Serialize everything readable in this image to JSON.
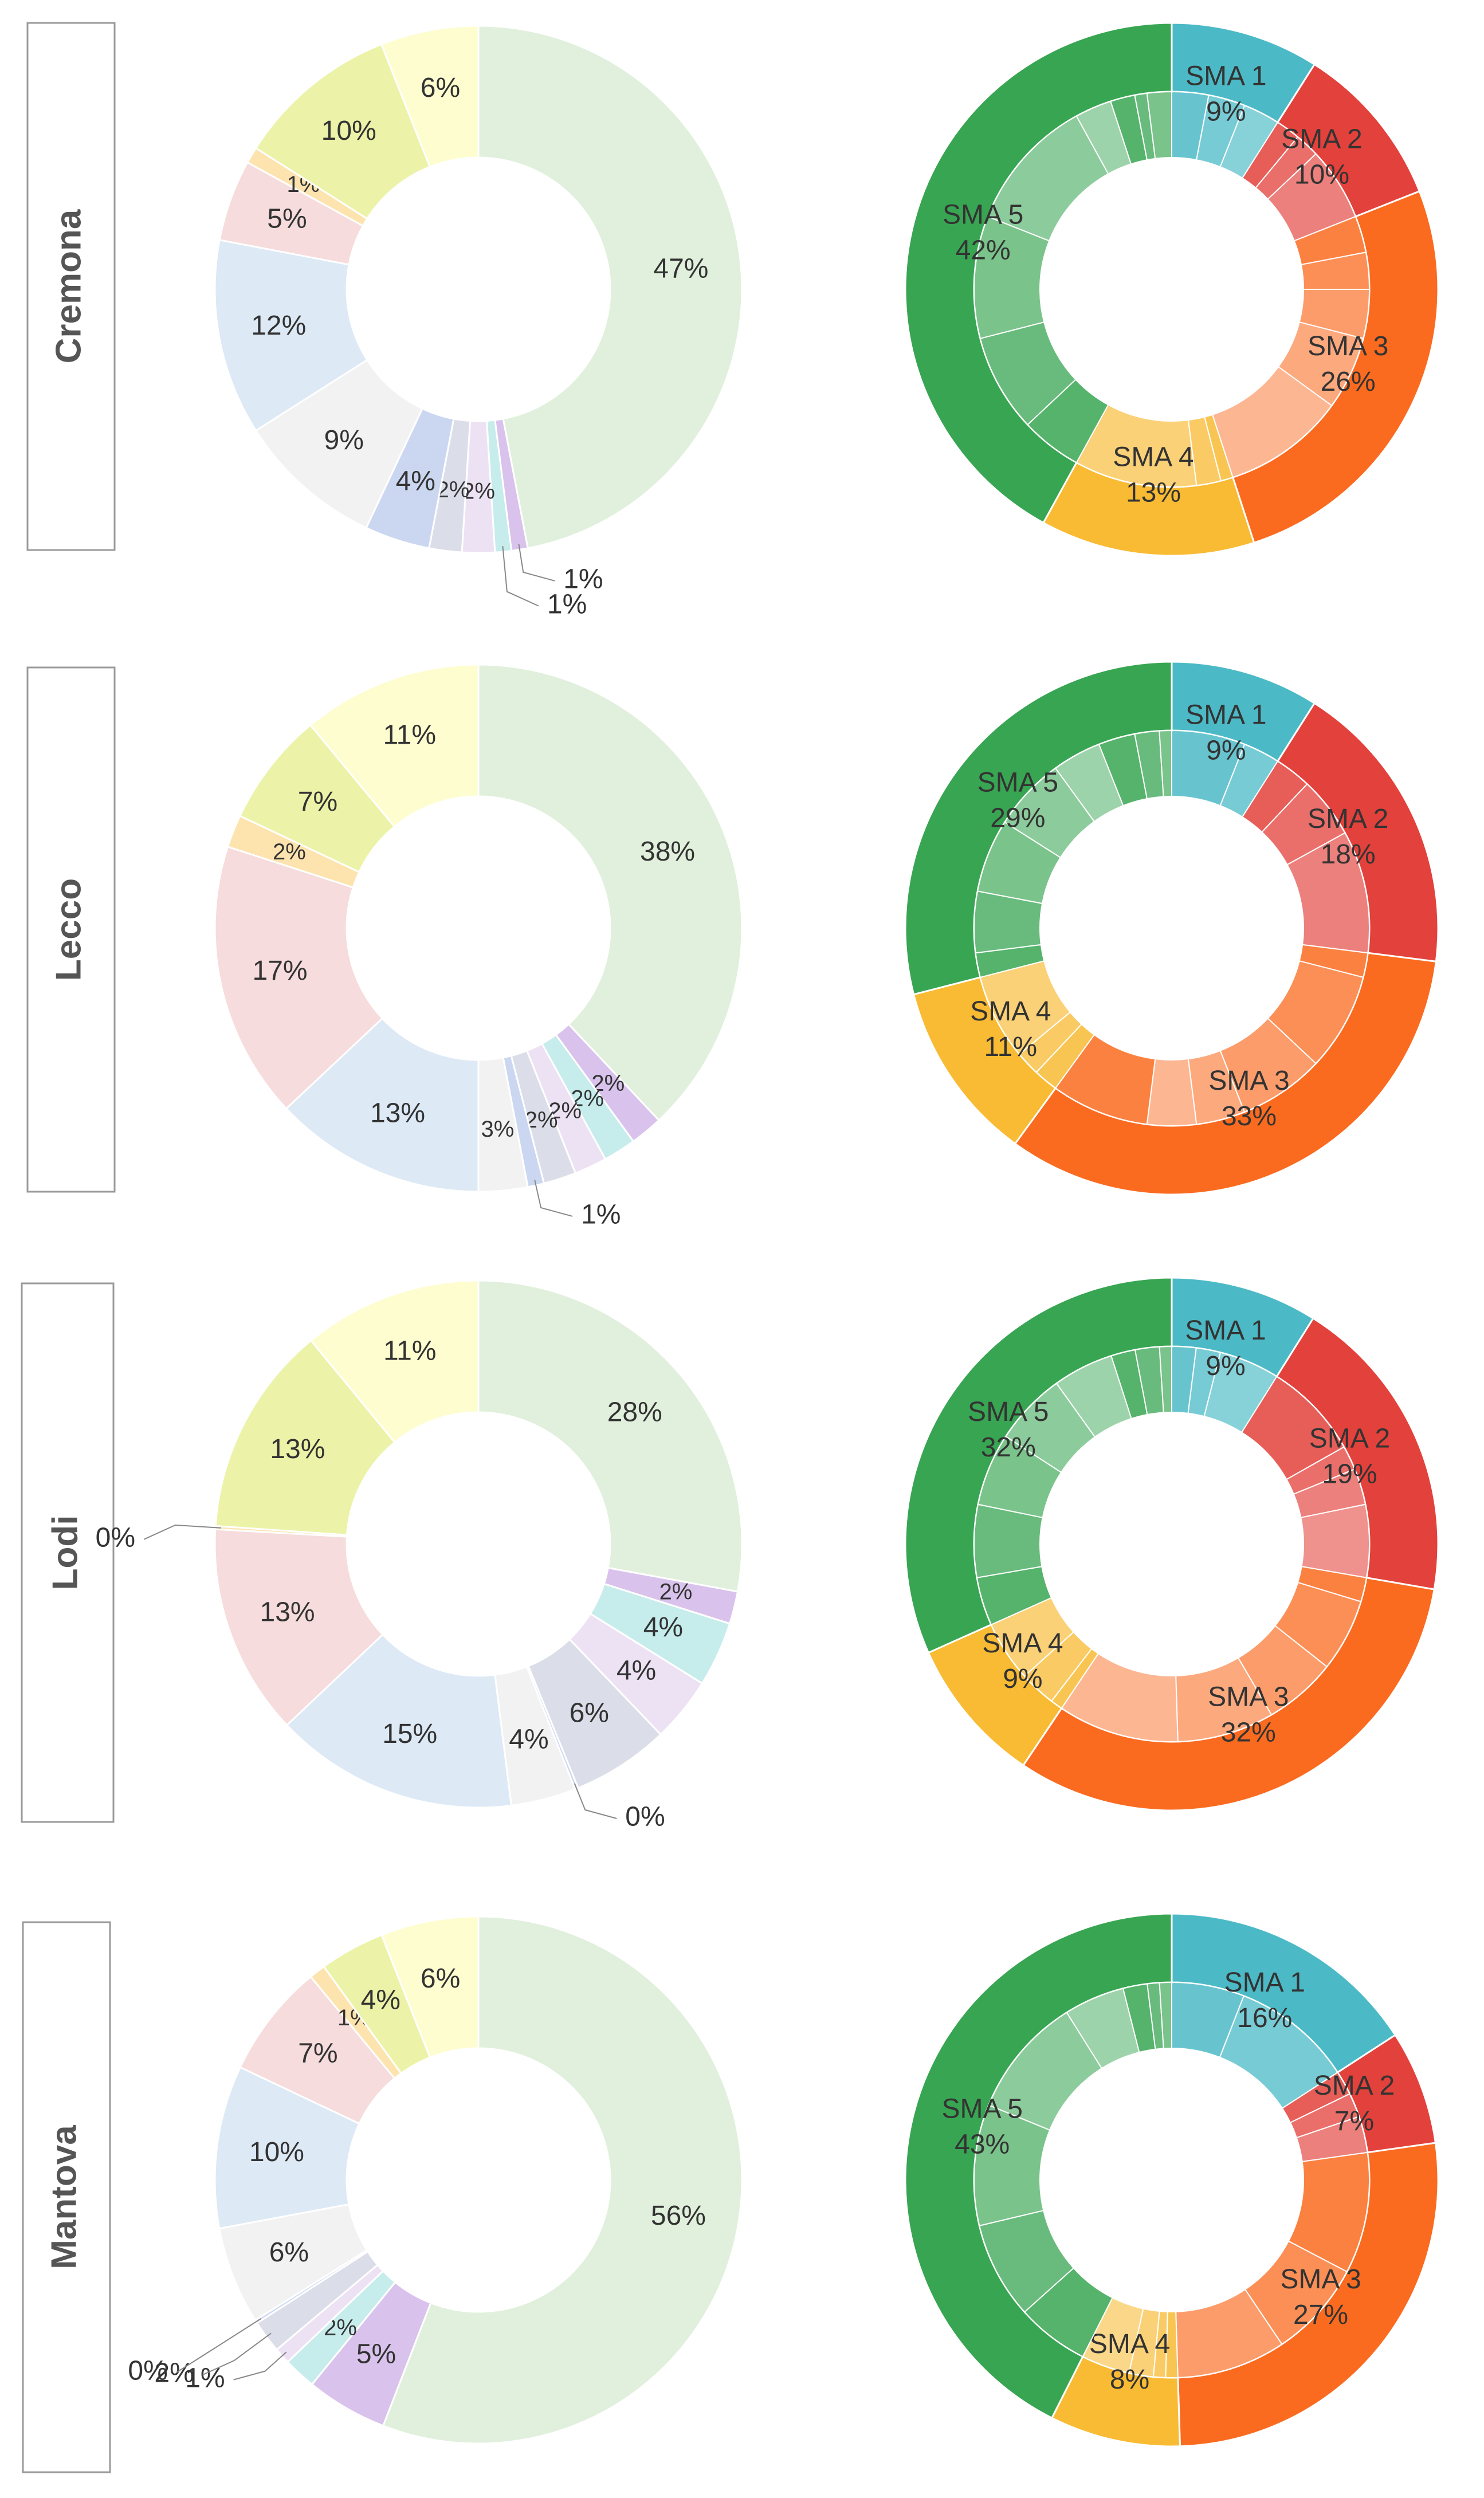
{
  "chart_data": [
    {
      "type": "pie",
      "province": "Cremona",
      "left_donut": {
        "slices": [
          {
            "value": 47,
            "label": "47%",
            "color": "#e1f0dc"
          },
          {
            "value": 1,
            "label": "1%",
            "color": "#d9c3ec",
            "callout": true
          },
          {
            "value": 1,
            "label": "1%",
            "color": "#c6ecec",
            "callout": true
          },
          {
            "value": 2,
            "label": "2%",
            "color": "#ede2f3"
          },
          {
            "value": 2,
            "label": "2%",
            "color": "#dbdee9"
          },
          {
            "value": 4,
            "label": "4%",
            "color": "#cbd7f1"
          },
          {
            "value": 9,
            "label": "9%",
            "color": "#f2f2f2"
          },
          {
            "value": 12,
            "label": "12%",
            "color": "#dde9f5"
          },
          {
            "value": 5,
            "label": "5%",
            "color": "#f6dcdc"
          },
          {
            "value": 1,
            "label": "1%",
            "color": "#fde3ae"
          },
          {
            "value": 10,
            "label": "10%",
            "color": "#ecf3a8"
          },
          {
            "value": 6,
            "label": "6%",
            "color": "#fefdd0"
          }
        ]
      },
      "right_donut": {
        "outer": [
          {
            "value": 9,
            "label": "SMA 1",
            "pct": "9%",
            "color": "#4cbac6"
          },
          {
            "value": 10,
            "label": "SMA 2",
            "pct": "10%",
            "color": "#e3413b"
          },
          {
            "value": 26,
            "label": "SMA 3",
            "pct": "26%",
            "color": "#fa6b20"
          },
          {
            "value": 13,
            "label": "SMA 4",
            "pct": "13%",
            "color": "#f8bb33"
          },
          {
            "value": 42,
            "label": "SMA 5",
            "pct": "42%",
            "color": "#38a552"
          }
        ],
        "inner": [
          [
            3,
            3,
            3
          ],
          [
            2,
            2,
            6
          ],
          [
            3,
            3,
            4,
            6,
            10
          ],
          [
            1,
            2,
            10
          ],
          [
            5,
            8,
            10,
            11,
            3,
            2,
            1,
            2
          ]
        ]
      }
    },
    {
      "type": "pie",
      "province": "Lecco",
      "left_donut": {
        "slices": [
          {
            "value": 38,
            "label": "38%",
            "color": "#e1f0dc"
          },
          {
            "value": 2,
            "label": "2%",
            "color": "#d9c3ec"
          },
          {
            "value": 2,
            "label": "2%",
            "color": "#c6ecec"
          },
          {
            "value": 2,
            "label": "2%",
            "color": "#ede2f3"
          },
          {
            "value": 2,
            "label": "2%",
            "color": "#dbdee9"
          },
          {
            "value": 1,
            "label": "1%",
            "color": "#cbd7f1",
            "callout": true
          },
          {
            "value": 3,
            "label": "3%",
            "color": "#f2f2f2"
          },
          {
            "value": 13,
            "label": "13%",
            "color": "#dde9f5"
          },
          {
            "value": 17,
            "label": "17%",
            "color": "#f6dcdc"
          },
          {
            "value": 2,
            "label": "2%",
            "color": "#fde3ae"
          },
          {
            "value": 7,
            "label": "7%",
            "color": "#ecf3a8"
          },
          {
            "value": 11,
            "label": "11%",
            "color": "#fefdd0"
          }
        ]
      },
      "right_donut": {
        "outer": [
          {
            "value": 9,
            "label": "SMA 1",
            "pct": "9%",
            "color": "#4cbac6"
          },
          {
            "value": 18,
            "label": "SMA 2",
            "pct": "18%",
            "color": "#e3413b"
          },
          {
            "value": 33,
            "label": "SMA 3",
            "pct": "33%",
            "color": "#fa6b20"
          },
          {
            "value": 11,
            "label": "SMA 4",
            "pct": "11%",
            "color": "#f8bb33"
          },
          {
            "value": 29,
            "label": "SMA 5",
            "pct": "29%",
            "color": "#38a552"
          }
        ],
        "inner": [
          [
            6,
            3
          ],
          [
            3,
            5,
            10
          ],
          [
            2,
            8,
            7,
            4,
            4,
            8
          ],
          [
            2,
            2,
            7
          ],
          [
            2,
            5,
            6,
            6,
            4,
            3,
            2,
            1
          ]
        ]
      }
    },
    {
      "type": "pie",
      "province": "Lodi",
      "left_donut": {
        "slices": [
          {
            "value": 28,
            "label": "28%",
            "color": "#e1f0dc"
          },
          {
            "value": 2,
            "label": "2%",
            "color": "#d9c3ec"
          },
          {
            "value": 4,
            "label": "4%",
            "color": "#c6ecec"
          },
          {
            "value": 4,
            "label": "4%",
            "color": "#ede2f3"
          },
          {
            "value": 6,
            "label": "6%",
            "color": "#dbdee9"
          },
          {
            "value": 0.2,
            "label": "0%",
            "color": "#cbd7f1",
            "callout": true
          },
          {
            "value": 4,
            "label": "4%",
            "color": "#f2f2f2"
          },
          {
            "value": 15,
            "label": "15%",
            "color": "#dde9f5"
          },
          {
            "value": 13,
            "label": "13%",
            "color": "#f6dcdc"
          },
          {
            "value": 0.2,
            "label": "0%",
            "color": "#fde3ae",
            "callout": true
          },
          {
            "value": 13,
            "label": "13%",
            "color": "#ecf3a8"
          },
          {
            "value": 11,
            "label": "11%",
            "color": "#fefdd0"
          }
        ]
      },
      "right_donut": {
        "outer": [
          {
            "value": 9,
            "label": "SMA 1",
            "pct": "9%",
            "color": "#4cbac6"
          },
          {
            "value": 19,
            "label": "SMA 2",
            "pct": "19%",
            "color": "#e3413b"
          },
          {
            "value": 32,
            "label": "SMA 3",
            "pct": "32%",
            "color": "#fa6b20"
          },
          {
            "value": 9,
            "label": "SMA 4",
            "pct": "9%",
            "color": "#f8bb33"
          },
          {
            "value": 32,
            "label": "SMA 5",
            "pct": "32%",
            "color": "#38a552"
          }
        ],
        "inner": [
          [
            2,
            2,
            5
          ],
          [
            8,
            2,
            3,
            6
          ],
          [
            2,
            6,
            6,
            8,
            10
          ],
          [
            1,
            3,
            5
          ],
          [
            4,
            6,
            6,
            6,
            5,
            2,
            2,
            1
          ]
        ]
      }
    },
    {
      "type": "pie",
      "province": "Mantova",
      "left_donut": {
        "slices": [
          {
            "value": 56,
            "label": "56%",
            "color": "#e1f0dc"
          },
          {
            "value": 5,
            "label": "5%",
            "color": "#d9c3ec"
          },
          {
            "value": 2,
            "label": "2%",
            "color": "#c6ecec"
          },
          {
            "value": 1,
            "label": "1%",
            "color": "#ede2f3",
            "callout": true
          },
          {
            "value": 2,
            "label": "2%",
            "color": "#dbdee9",
            "callout": true
          },
          {
            "value": 0.2,
            "label": "0%",
            "color": "#cbd7f1",
            "callout": true
          },
          {
            "value": 6,
            "label": "6%",
            "color": "#f2f2f2"
          },
          {
            "value": 10,
            "label": "10%",
            "color": "#dde9f5"
          },
          {
            "value": 7,
            "label": "7%",
            "color": "#f6dcdc"
          },
          {
            "value": 1,
            "label": "1%",
            "color": "#fde3ae"
          },
          {
            "value": 4,
            "label": "4%",
            "color": "#ecf3a8"
          },
          {
            "value": 6,
            "label": "6%",
            "color": "#fefdd0"
          }
        ]
      },
      "right_donut": {
        "outer": [
          {
            "value": 16,
            "label": "SMA 1",
            "pct": "16%",
            "color": "#4cbac6"
          },
          {
            "value": 7,
            "label": "SMA 2",
            "pct": "7%",
            "color": "#e3413b"
          },
          {
            "value": 27,
            "label": "SMA 3",
            "pct": "27%",
            "color": "#fa6b20"
          },
          {
            "value": 8,
            "label": "SMA 4",
            "pct": "8%",
            "color": "#f8bb33"
          },
          {
            "value": 43,
            "label": "SMA 5",
            "pct": "43%",
            "color": "#38a552"
          }
        ],
        "inner": [
          [
            6,
            10
          ],
          [
            2,
            2,
            3
          ],
          [
            10,
            8,
            9
          ],
          [
            1,
            1,
            2,
            4
          ],
          [
            6,
            8,
            10,
            10,
            5,
            2,
            1,
            1
          ]
        ]
      }
    }
  ]
}
